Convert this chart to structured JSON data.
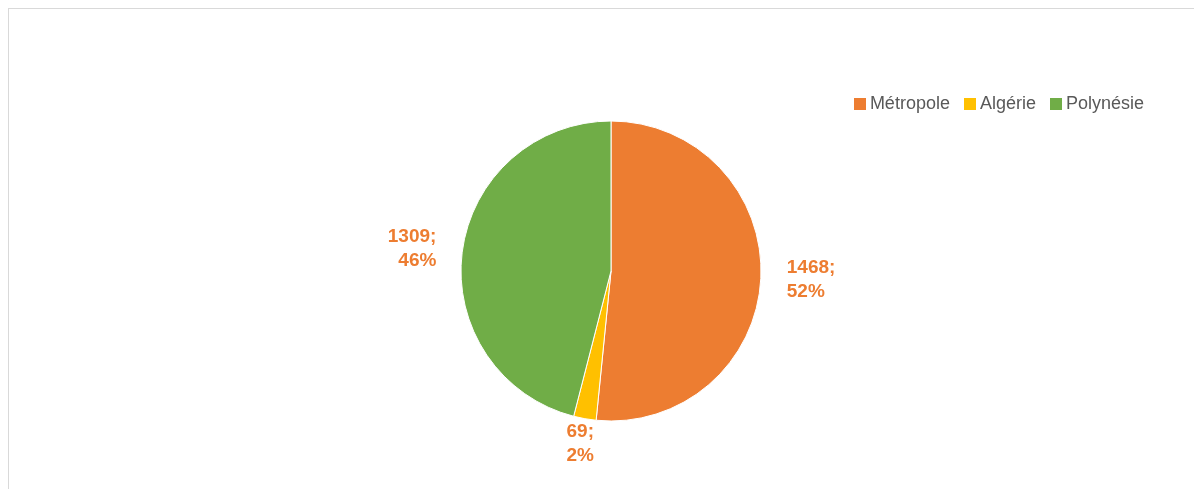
{
  "chart_data": {
    "type": "pie",
    "categories": [
      "Métropole",
      "Algérie",
      "Polynésie"
    ],
    "values": [
      1468,
      69,
      1309
    ],
    "colors": [
      "#ed7d31",
      "#ffc000",
      "#70ad47"
    ],
    "value_labels": [
      "1468; 52%",
      "69; 2%",
      "1309; 46%"
    ],
    "legend": "top right"
  }
}
